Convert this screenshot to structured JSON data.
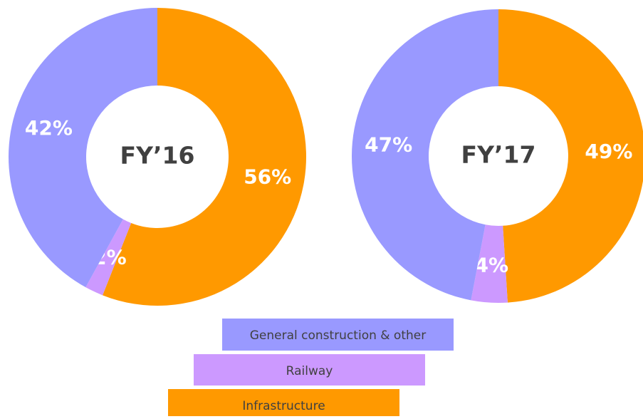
{
  "chart_data": [
    {
      "type": "pie",
      "title": "FY’16",
      "categories": [
        "Infrastructure",
        "Railway",
        "General construction & other"
      ],
      "values": [
        56,
        2,
        42
      ],
      "value_labels": [
        "56%",
        "2%",
        "42%"
      ],
      "colors": [
        "#ff9900",
        "#cc99ff",
        "#9999ff"
      ]
    },
    {
      "type": "pie",
      "title": "FY’17",
      "categories": [
        "Infrastructure",
        "Railway",
        "General construction & other"
      ],
      "values": [
        49,
        4,
        47
      ],
      "value_labels": [
        "49%",
        "4%",
        "47%"
      ],
      "colors": [
        "#ff9900",
        "#cc99ff",
        "#9999ff"
      ]
    }
  ]
}
